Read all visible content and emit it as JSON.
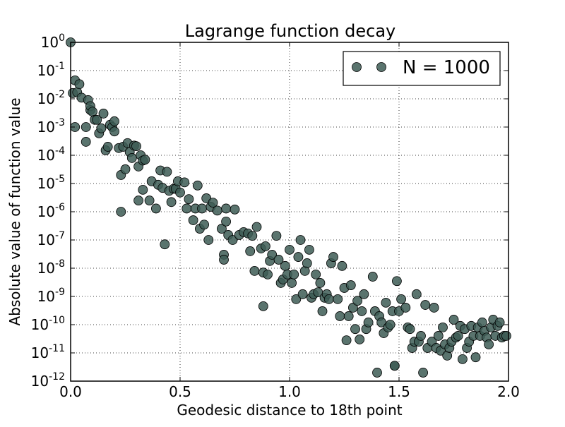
{
  "chart_data": {
    "type": "scatter",
    "title": "Lagrange function decay",
    "xlabel": "Geodesic distance to 18th point",
    "ylabel": "Absolute value of function value",
    "xlim": [
      0.0,
      2.0
    ],
    "ylim_log10": [
      -12,
      0
    ],
    "yscale": "log",
    "grid": true,
    "legend_position": "top-right",
    "marker_color": "#3d5c55",
    "x_ticks": [
      "0.0",
      "0.5",
      "1.0",
      "1.5",
      "2.0"
    ],
    "y_ticks": [
      {
        "base": "10",
        "exp": "0"
      },
      {
        "base": "10",
        "exp": "-1"
      },
      {
        "base": "10",
        "exp": "-2"
      },
      {
        "base": "10",
        "exp": "-3"
      },
      {
        "base": "10",
        "exp": "-4"
      },
      {
        "base": "10",
        "exp": "-5"
      },
      {
        "base": "10",
        "exp": "-6"
      },
      {
        "base": "10",
        "exp": "-7"
      },
      {
        "base": "10",
        "exp": "-8"
      },
      {
        "base": "10",
        "exp": "-9"
      },
      {
        "base": "10",
        "exp": "-10"
      },
      {
        "base": "10",
        "exp": "-11"
      },
      {
        "base": "10",
        "exp": "-12"
      }
    ],
    "series": [
      {
        "name": "N = 1000",
        "points": [
          [
            0.0,
            1.0
          ],
          [
            0.01,
            0.016
          ],
          [
            0.02,
            0.045
          ],
          [
            0.02,
            0.001
          ],
          [
            0.03,
            0.017
          ],
          [
            0.04,
            0.033
          ],
          [
            0.05,
            0.011
          ],
          [
            0.07,
            0.001
          ],
          [
            0.07,
            0.0003
          ],
          [
            0.08,
            0.009
          ],
          [
            0.09,
            0.004
          ],
          [
            0.09,
            0.0055
          ],
          [
            0.1,
            0.0035
          ],
          [
            0.11,
            0.0018
          ],
          [
            0.12,
            0.0018
          ],
          [
            0.13,
            0.0006
          ],
          [
            0.14,
            0.0009
          ],
          [
            0.15,
            0.003
          ],
          [
            0.16,
            0.00015
          ],
          [
            0.17,
            0.0002
          ],
          [
            0.18,
            0.0012
          ],
          [
            0.19,
            0.001
          ],
          [
            0.2,
            0.0016
          ],
          [
            0.2,
            0.0007
          ],
          [
            0.22,
            0.00018
          ],
          [
            0.23,
            2e-05
          ],
          [
            0.23,
            1e-06
          ],
          [
            0.24,
            0.0002
          ],
          [
            0.25,
            3.2e-05
          ],
          [
            0.26,
            0.00027
          ],
          [
            0.27,
            0.00013
          ],
          [
            0.28,
            8e-05
          ],
          [
            0.29,
            0.00022
          ],
          [
            0.3,
            0.00021
          ],
          [
            0.31,
            4e-05
          ],
          [
            0.31,
            2.5e-06
          ],
          [
            0.32,
            0.0001
          ],
          [
            0.33,
            6.5e-05
          ],
          [
            0.33,
            6e-06
          ],
          [
            0.34,
            7e-05
          ],
          [
            0.36,
            2.5e-06
          ],
          [
            0.37,
            1.2e-05
          ],
          [
            0.39,
            1.3e-06
          ],
          [
            0.4,
            9e-06
          ],
          [
            0.41,
            2.9e-05
          ],
          [
            0.42,
            7e-06
          ],
          [
            0.43,
            7e-08
          ],
          [
            0.44,
            2.6e-05
          ],
          [
            0.45,
            5.5e-06
          ],
          [
            0.46,
            2.2e-06
          ],
          [
            0.47,
            6.5e-06
          ],
          [
            0.48,
            6.5e-06
          ],
          [
            0.49,
            1.2e-05
          ],
          [
            0.5,
            4.8e-06
          ],
          [
            0.52,
            1.1e-05
          ],
          [
            0.53,
            1.3e-06
          ],
          [
            0.54,
            2.8e-06
          ],
          [
            0.56,
            5e-07
          ],
          [
            0.57,
            1.3e-06
          ],
          [
            0.58,
            8.5e-06
          ],
          [
            0.59,
            2.5e-07
          ],
          [
            0.6,
            1.3e-06
          ],
          [
            0.61,
            3.5e-07
          ],
          [
            0.62,
            3e-06
          ],
          [
            0.63,
            1e-07
          ],
          [
            0.64,
            1.5e-06
          ],
          [
            0.65,
            2.1e-06
          ],
          [
            0.67,
            1.1e-06
          ],
          [
            0.69,
            2.5e-07
          ],
          [
            0.7,
            3e-08
          ],
          [
            0.7,
            2e-08
          ],
          [
            0.71,
            1.3e-06
          ],
          [
            0.71,
            4.5e-07
          ],
          [
            0.72,
            1.5e-07
          ],
          [
            0.74,
            1e-07
          ],
          [
            0.75,
            1.2e-06
          ],
          [
            0.77,
            1.5e-07
          ],
          [
            0.79,
            1.9e-07
          ],
          [
            0.81,
            1.7e-07
          ],
          [
            0.82,
            4e-08
          ],
          [
            0.83,
            1.4e-07
          ],
          [
            0.84,
            8e-09
          ],
          [
            0.85,
            2.9e-07
          ],
          [
            0.87,
            5e-08
          ],
          [
            0.88,
            4.5e-10
          ],
          [
            0.88,
            7e-09
          ],
          [
            0.89,
            6e-08
          ],
          [
            0.9,
            6e-09
          ],
          [
            0.91,
            1.8e-08
          ],
          [
            0.92,
            3e-08
          ],
          [
            0.94,
            1.4e-07
          ],
          [
            0.95,
            2e-08
          ],
          [
            0.96,
            3e-09
          ],
          [
            0.97,
            4e-09
          ],
          [
            0.98,
            1.2e-08
          ],
          [
            0.99,
            6e-09
          ],
          [
            1.0,
            4.5e-08
          ],
          [
            1.01,
            3e-09
          ],
          [
            1.02,
            6e-09
          ],
          [
            1.03,
            8e-10
          ],
          [
            1.04,
            2.5e-08
          ],
          [
            1.05,
            1e-07
          ],
          [
            1.06,
            1.2e-09
          ],
          [
            1.07,
            8e-09
          ],
          [
            1.08,
            1.5e-08
          ],
          [
            1.09,
            4.5e-08
          ],
          [
            1.1,
            9e-10
          ],
          [
            1.11,
            1.2e-09
          ],
          [
            1.12,
            6e-09
          ],
          [
            1.13,
            1.4e-09
          ],
          [
            1.14,
            3e-09
          ],
          [
            1.15,
            3e-10
          ],
          [
            1.16,
            9e-10
          ],
          [
            1.17,
            1.2e-09
          ],
          [
            1.18,
            8e-10
          ],
          [
            1.19,
            1.5e-08
          ],
          [
            1.2,
            2.5e-08
          ],
          [
            1.22,
            8e-10
          ],
          [
            1.23,
            2e-10
          ],
          [
            1.24,
            1.2e-08
          ],
          [
            1.25,
            2e-09
          ],
          [
            1.26,
            2.8e-11
          ],
          [
            1.27,
            2e-10
          ],
          [
            1.28,
            2.5e-09
          ],
          [
            1.29,
            4e-10
          ],
          [
            1.3,
            7e-11
          ],
          [
            1.31,
            7e-10
          ],
          [
            1.32,
            3e-11
          ],
          [
            1.33,
            3e-10
          ],
          [
            1.34,
            1.2e-09
          ],
          [
            1.35,
            7e-11
          ],
          [
            1.36,
            1.2e-10
          ],
          [
            1.38,
            5e-09
          ],
          [
            1.39,
            3e-10
          ],
          [
            1.4,
            2e-12
          ],
          [
            1.41,
            2e-10
          ],
          [
            1.42,
            1.2e-10
          ],
          [
            1.43,
            5e-11
          ],
          [
            1.44,
            6e-10
          ],
          [
            1.45,
            8e-11
          ],
          [
            1.46,
            1e-10
          ],
          [
            1.47,
            3e-10
          ],
          [
            1.48,
            3.5e-12
          ],
          [
            1.48,
            3.5e-12
          ],
          [
            1.49,
            3.5e-09
          ],
          [
            1.5,
            3e-10
          ],
          [
            1.51,
            8e-10
          ],
          [
            1.53,
            4e-10
          ],
          [
            1.54,
            8e-11
          ],
          [
            1.55,
            7e-11
          ],
          [
            1.56,
            1.5e-11
          ],
          [
            1.57,
            2.5e-11
          ],
          [
            1.58,
            1.2e-09
          ],
          [
            1.59,
            2.5e-11
          ],
          [
            1.6,
            4e-11
          ],
          [
            1.61,
            2e-12
          ],
          [
            1.62,
            5e-10
          ],
          [
            1.63,
            1.5e-11
          ],
          [
            1.65,
            2.5e-11
          ],
          [
            1.66,
            4e-10
          ],
          [
            1.67,
            1.5e-11
          ],
          [
            1.68,
            4e-11
          ],
          [
            1.69,
            1.2e-11
          ],
          [
            1.7,
            8e-11
          ],
          [
            1.71,
            2e-11
          ],
          [
            1.72,
            8e-12
          ],
          [
            1.73,
            1.5e-11
          ],
          [
            1.74,
            2.5e-11
          ],
          [
            1.75,
            1.5e-10
          ],
          [
            1.76,
            3.5e-11
          ],
          [
            1.77,
            4e-11
          ],
          [
            1.78,
            9e-11
          ],
          [
            1.79,
            6e-12
          ],
          [
            1.8,
            7e-11
          ],
          [
            1.81,
            1.5e-11
          ],
          [
            1.82,
            2.5e-11
          ],
          [
            1.83,
            9e-11
          ],
          [
            1.84,
            4e-11
          ],
          [
            1.85,
            7e-12
          ],
          [
            1.86,
            8e-11
          ],
          [
            1.87,
            4e-11
          ],
          [
            1.88,
            1.2e-10
          ],
          [
            1.89,
            6e-11
          ],
          [
            1.9,
            3.5e-11
          ],
          [
            1.91,
            2e-11
          ],
          [
            1.92,
            8e-11
          ],
          [
            1.93,
            1.5e-10
          ],
          [
            1.94,
            4e-11
          ],
          [
            1.95,
            9e-11
          ],
          [
            1.96,
            1.2e-10
          ],
          [
            1.97,
            3.5e-11
          ],
          [
            1.98,
            4e-11
          ],
          [
            1.99,
            4e-11
          ]
        ]
      }
    ]
  }
}
